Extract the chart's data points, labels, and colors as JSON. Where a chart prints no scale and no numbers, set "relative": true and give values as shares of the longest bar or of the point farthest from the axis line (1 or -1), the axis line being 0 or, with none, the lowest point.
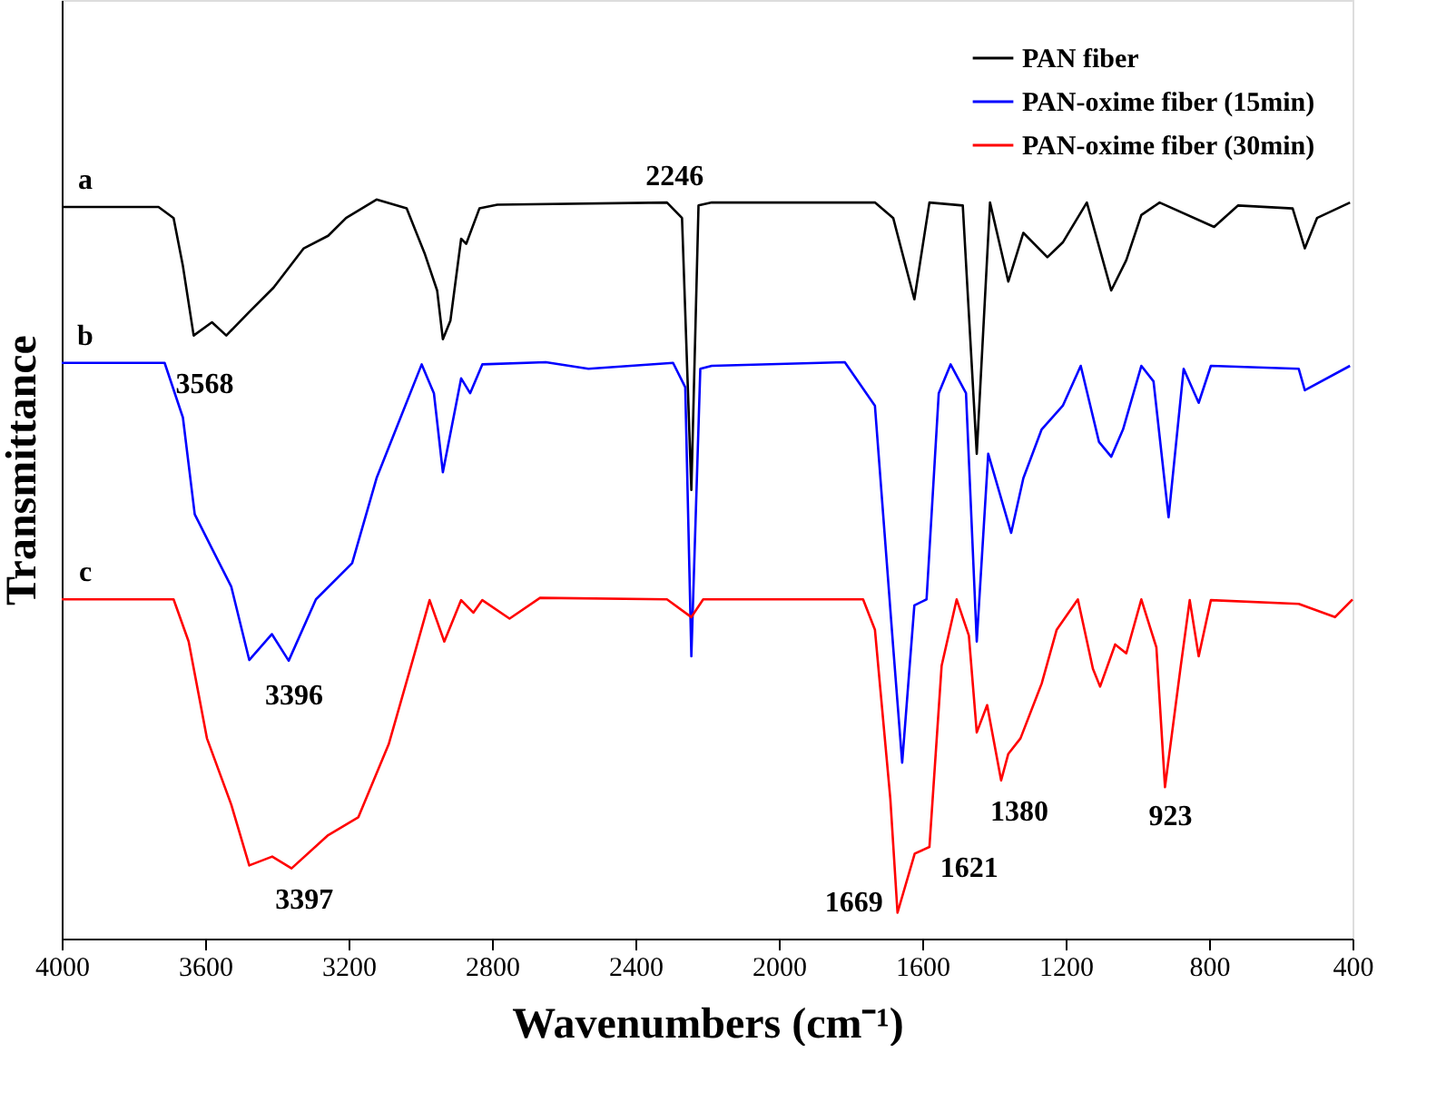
{
  "chart_data": {
    "type": "line",
    "relative": true,
    "xlabel": "Wavenumbers (cm⁻¹)",
    "ylabel": "Transmittance",
    "xlim": [
      4000,
      400
    ],
    "xticks": [
      4000,
      3600,
      3200,
      2800,
      2400,
      2000,
      1600,
      1200,
      800,
      400
    ],
    "grid": false,
    "legend": "top right",
    "marker": "none",
    "line_style": "solid",
    "series": [
      {
        "name": "PAN fiber",
        "color": "#000000",
        "x": [
          4000,
          3730,
          3688,
          3662,
          3632,
          3581,
          3541,
          3477,
          3409,
          3325,
          3257,
          3207,
          3122,
          3038,
          2987,
          2953,
          2937,
          2916,
          2886,
          2872,
          2835,
          2785,
          2312,
          2270,
          2244,
          2224,
          2187,
          1732,
          1681,
          1622,
          1580,
          1487,
          1448,
          1411,
          1360,
          1318,
          1251,
          1208,
          1141,
          1073,
          1031,
          989,
          938,
          786,
          719,
          567,
          533,
          499,
          407
        ],
        "values": [
          0.99,
          0.99,
          0.975,
          0.91,
          0.816,
          0.834,
          0.816,
          0.848,
          0.881,
          0.934,
          0.951,
          0.975,
          1.0,
          0.988,
          0.926,
          0.877,
          0.811,
          0.836,
          0.947,
          0.94,
          0.988,
          0.993,
          0.996,
          0.975,
          0.607,
          0.992,
          0.996,
          0.996,
          0.975,
          0.865,
          0.996,
          0.992,
          0.656,
          0.996,
          0.889,
          0.955,
          0.922,
          0.942,
          0.996,
          0.877,
          0.918,
          0.979,
          0.996,
          0.963,
          0.992,
          0.988,
          0.934,
          0.975,
          0.996
        ]
      },
      {
        "name": "PAN-oxime fiber (15min)",
        "color": "#0000ff",
        "x": [
          4000,
          3713,
          3662,
          3629,
          3578,
          3527,
          3477,
          3414,
          3367,
          3291,
          3190,
          3122,
          3055,
          2996,
          2962,
          2937,
          2886,
          2861,
          2827,
          2650,
          2531,
          2295,
          2261,
          2244,
          2219,
          2187,
          1816,
          1732,
          1681,
          1656,
          1622,
          1588,
          1554,
          1521,
          1478,
          1448,
          1416,
          1352,
          1318,
          1267,
          1208,
          1158,
          1107,
          1073,
          1040,
          989,
          955,
          913,
          871,
          829,
          795,
          550,
          533,
          407
        ],
        "values": [
          0.779,
          0.779,
          0.705,
          0.574,
          0.525,
          0.476,
          0.377,
          0.412,
          0.376,
          0.459,
          0.508,
          0.623,
          0.705,
          0.777,
          0.738,
          0.631,
          0.758,
          0.738,
          0.777,
          0.78,
          0.771,
          0.779,
          0.746,
          0.382,
          0.771,
          0.775,
          0.78,
          0.721,
          0.394,
          0.238,
          0.451,
          0.459,
          0.738,
          0.777,
          0.738,
          0.402,
          0.656,
          0.549,
          0.623,
          0.689,
          0.721,
          0.775,
          0.672,
          0.652,
          0.689,
          0.775,
          0.754,
          0.57,
          0.771,
          0.725,
          0.775,
          0.771,
          0.742,
          0.775
        ]
      },
      {
        "name": "PAN-oxime fiber (30min)",
        "color": "#ff0000",
        "x": [
          4000,
          3688,
          3646,
          3595,
          3527,
          3477,
          3413,
          3359,
          3257,
          3173,
          3088,
          3021,
          2974,
          2933,
          2886,
          2852,
          2827,
          2751,
          2666,
          2312,
          2244,
          2211,
          1765,
          1732,
          1689,
          1669,
          1621,
          1580,
          1546,
          1504,
          1470,
          1448,
          1419,
          1380,
          1360,
          1326,
          1267,
          1225,
          1166,
          1124,
          1104,
          1062,
          1031,
          989,
          947,
          923,
          879,
          854,
          829,
          795,
          550,
          449,
          400
        ],
        "values": [
          0.459,
          0.459,
          0.402,
          0.271,
          0.181,
          0.099,
          0.111,
          0.095,
          0.14,
          0.164,
          0.263,
          0.377,
          0.458,
          0.402,
          0.458,
          0.441,
          0.458,
          0.433,
          0.461,
          0.459,
          0.435,
          0.459,
          0.459,
          0.418,
          0.189,
          0.035,
          0.115,
          0.124,
          0.369,
          0.459,
          0.41,
          0.279,
          0.316,
          0.214,
          0.25,
          0.271,
          0.345,
          0.418,
          0.459,
          0.365,
          0.341,
          0.398,
          0.386,
          0.459,
          0.394,
          0.205,
          0.369,
          0.458,
          0.382,
          0.458,
          0.453,
          0.435,
          0.459
        ]
      }
    ],
    "annotations": [
      "a",
      "b",
      "c",
      {
        "text": "2246",
        "x": 2270,
        "y": 0.975
      },
      {
        "text": "3568",
        "x": 3581,
        "y": 0.834
      },
      {
        "text": "3396",
        "x": 3367,
        "y": 0.376
      },
      {
        "text": "3397",
        "x": 3359,
        "y": 0.095
      },
      {
        "text": "1669",
        "x": 1669,
        "y": 0.035
      },
      {
        "text": "1621",
        "x": 1621,
        "y": 0.115
      },
      {
        "text": "1380",
        "x": 1380,
        "y": 0.214
      },
      {
        "text": "923",
        "x": 923,
        "y": 0.205
      }
    ]
  }
}
